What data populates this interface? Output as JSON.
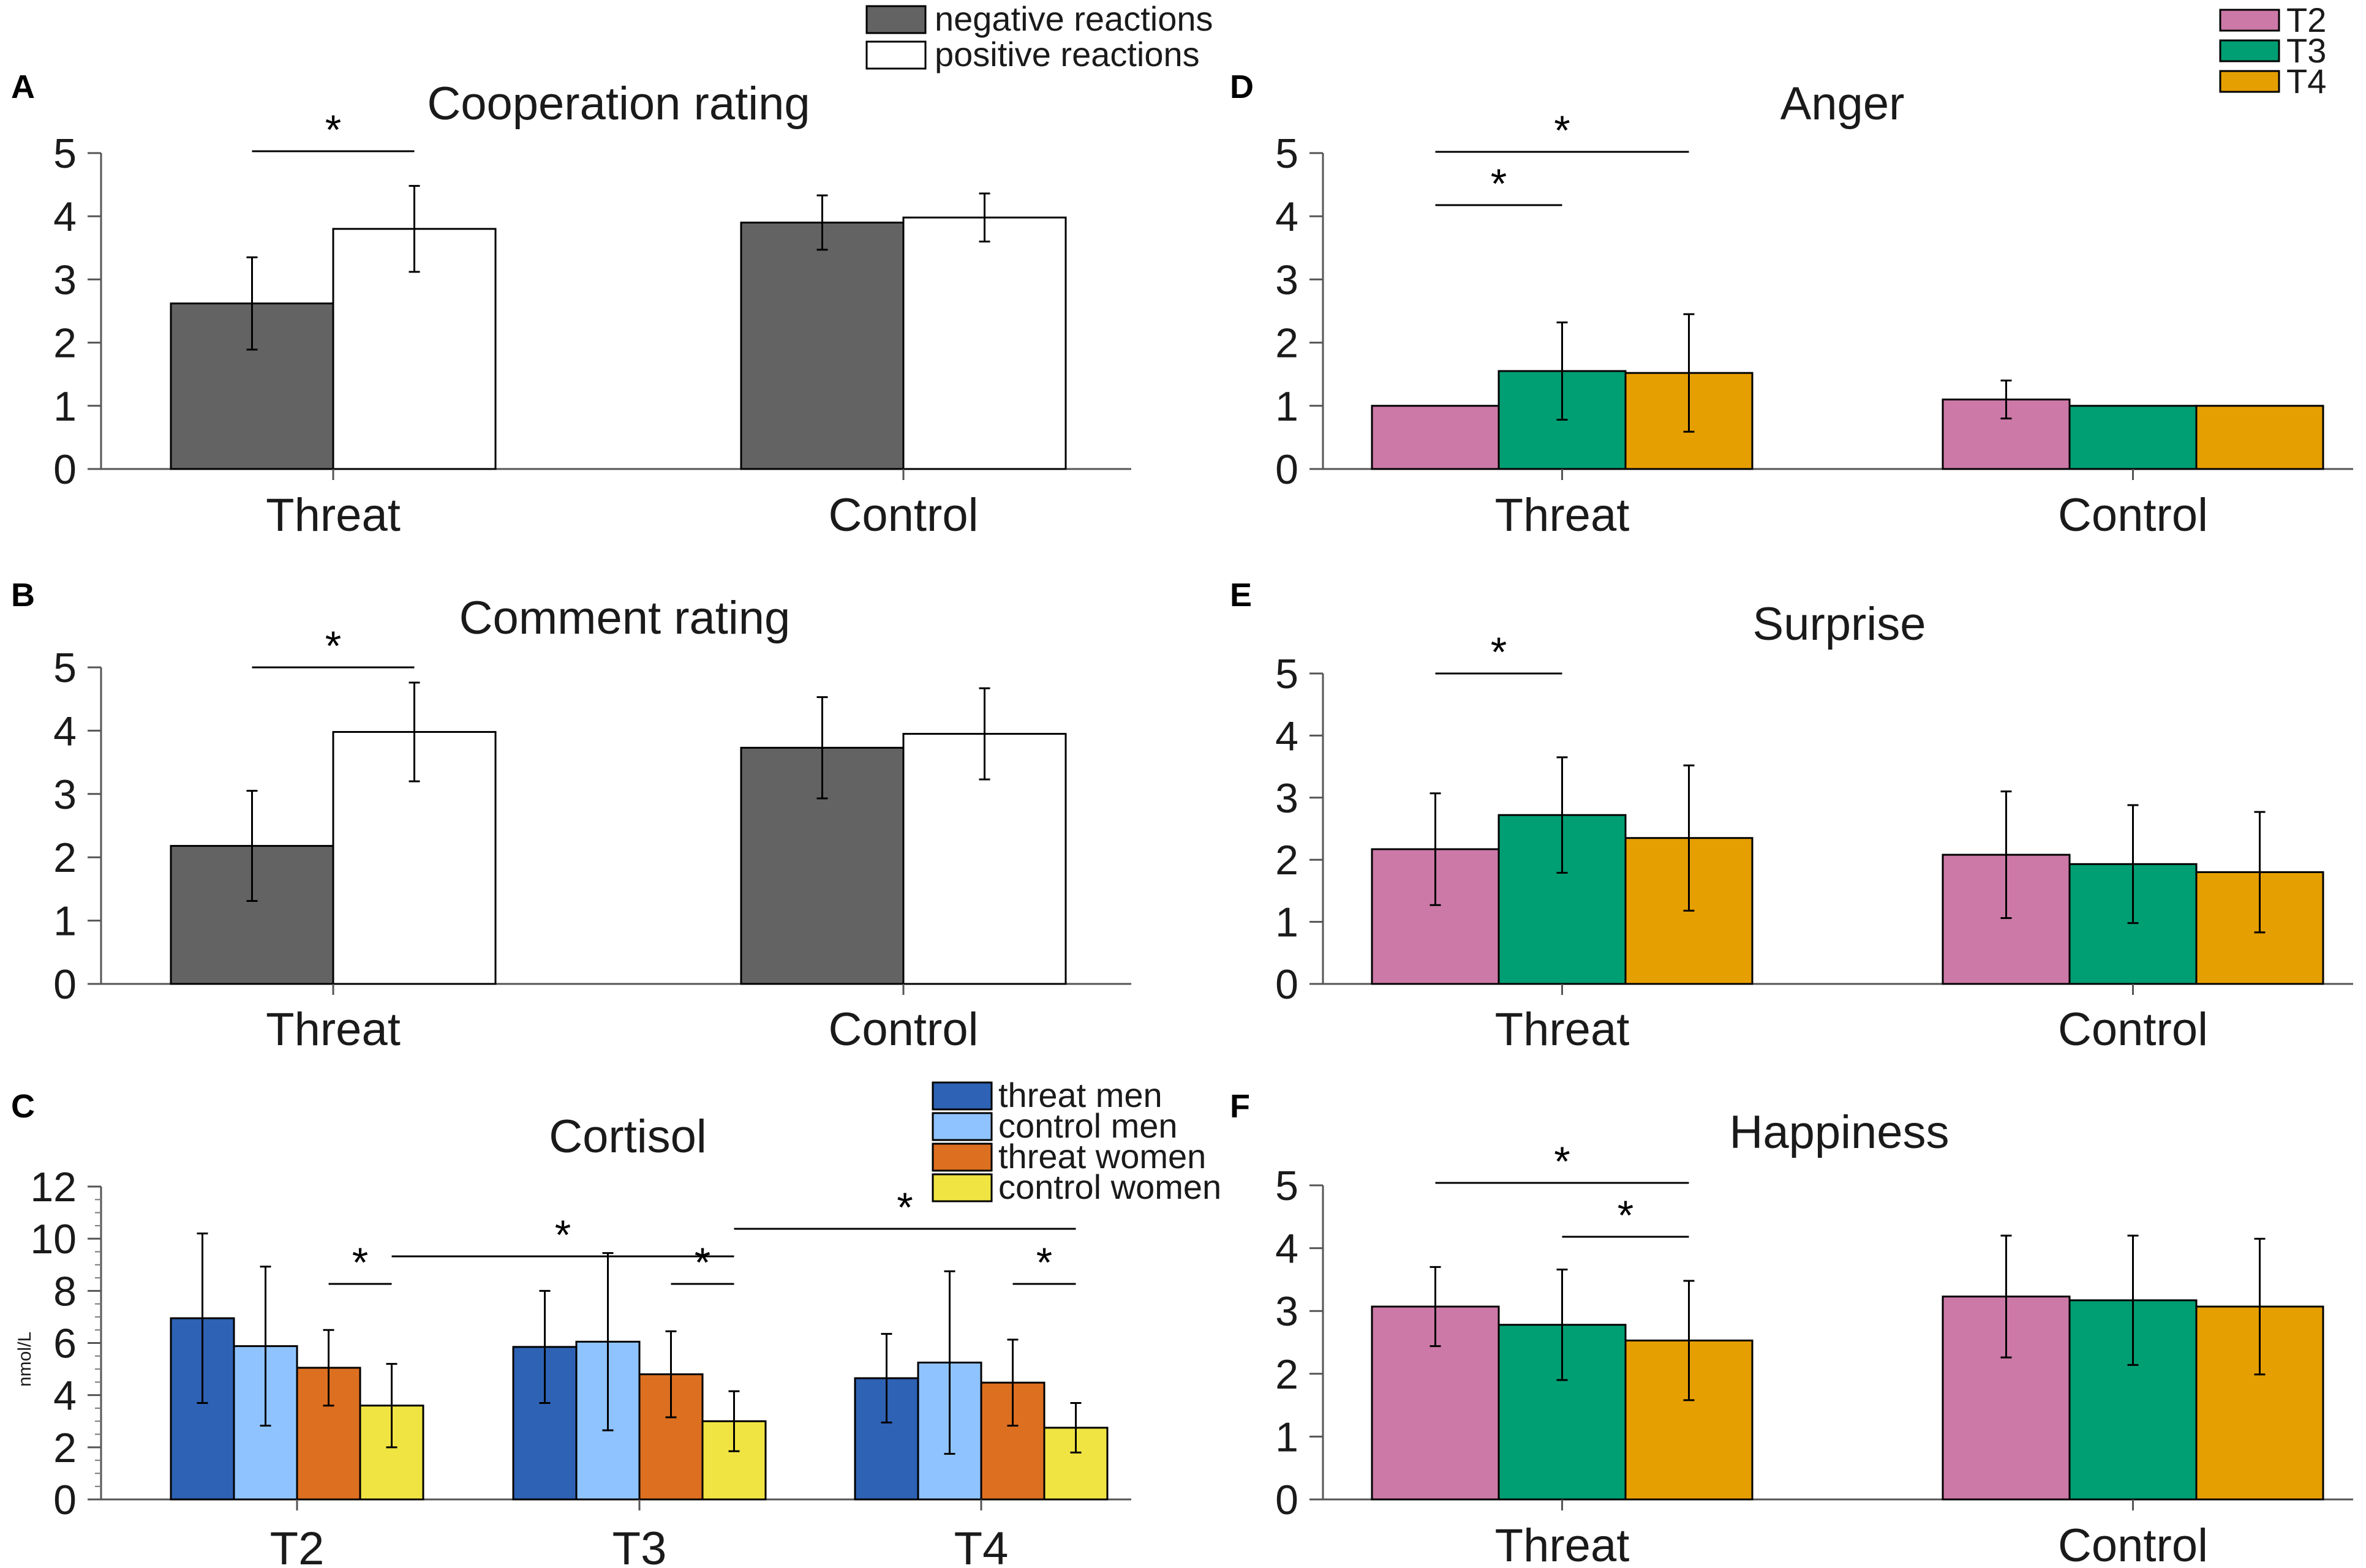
{
  "legends": {
    "reactions": [
      {
        "label": "negative reactions",
        "color": "#636363"
      },
      {
        "label": "positive reactions",
        "color": "#ffffff"
      }
    ],
    "timepoints": [
      {
        "label": "T2",
        "color": "#cc79a7"
      },
      {
        "label": "T3",
        "color": "#009e73"
      },
      {
        "label": "T4",
        "color": "#e69f00"
      }
    ],
    "cortisol_groups": [
      {
        "label": "threat men",
        "color": "#2e62b4"
      },
      {
        "label": "control men",
        "color": "#8fc3ff"
      },
      {
        "label": "threat women",
        "color": "#dd6f21"
      },
      {
        "label": "control women",
        "color": "#f0e442"
      }
    ]
  },
  "chart_data": [
    {
      "id": "A",
      "letter": "A",
      "type": "bar",
      "title": "Cooperation rating",
      "categories": [
        "Threat",
        "Control"
      ],
      "series": [
        {
          "name": "negative reactions",
          "values": [
            2.62,
            3.9
          ],
          "err": [
            0.73,
            0.43
          ],
          "color": "#636363"
        },
        {
          "name": "positive reactions",
          "values": [
            3.8,
            3.98
          ],
          "err": [
            0.68,
            0.38
          ],
          "color": "#ffffff"
        }
      ],
      "ylim": [
        0,
        5
      ],
      "yticks": [
        "0",
        "1",
        "2",
        "3",
        "4",
        "5"
      ],
      "significance": [
        {
          "group": 0,
          "from": 0,
          "to": 1,
          "level": 0,
          "label": "*"
        }
      ]
    },
    {
      "id": "B",
      "letter": "B",
      "type": "bar",
      "title": "Comment rating",
      "categories": [
        "Threat",
        "Control"
      ],
      "series": [
        {
          "name": "negative reactions",
          "values": [
            2.18,
            3.73
          ],
          "err": [
            0.87,
            0.8
          ],
          "color": "#636363"
        },
        {
          "name": "positive reactions",
          "values": [
            3.98,
            3.95
          ],
          "err": [
            0.78,
            0.72
          ],
          "color": "#ffffff"
        }
      ],
      "ylim": [
        0,
        5
      ],
      "yticks": [
        "0",
        "1",
        "2",
        "3",
        "4",
        "5"
      ],
      "significance": [
        {
          "group": 0,
          "from": 0,
          "to": 1,
          "level": 0,
          "label": "*"
        }
      ]
    },
    {
      "id": "C",
      "letter": "C",
      "type": "bar",
      "title": "Cortisol",
      "ylabel": "nmol/L",
      "categories": [
        "T2",
        "T3",
        "T4"
      ],
      "series": [
        {
          "name": "threat men",
          "values": [
            6.95,
            5.85,
            4.65
          ],
          "err": [
            3.25,
            2.15,
            1.7
          ],
          "color": "#2e62b4"
        },
        {
          "name": "control men",
          "values": [
            5.88,
            6.05,
            5.25
          ],
          "err": [
            3.05,
            3.4,
            3.5
          ],
          "color": "#8fc3ff"
        },
        {
          "name": "threat women",
          "values": [
            5.05,
            4.8,
            4.48
          ],
          "err": [
            1.45,
            1.65,
            1.65
          ],
          "color": "#dd6f21"
        },
        {
          "name": "control women",
          "values": [
            3.6,
            3.0,
            2.75
          ],
          "err": [
            1.6,
            1.15,
            0.95
          ],
          "color": "#f0e442"
        }
      ],
      "ylim": [
        0,
        12
      ],
      "yticks": [
        "0",
        "2",
        "4",
        "6",
        "8",
        "10",
        "12"
      ],
      "significance": [
        {
          "group": 0,
          "from": 2,
          "to": 3,
          "level": 0,
          "label": "*"
        },
        {
          "group": 1,
          "from": 2,
          "to": 3,
          "level": 0,
          "label": "*"
        },
        {
          "group": 2,
          "from": 2,
          "to": 3,
          "level": 0,
          "label": "*"
        },
        {
          "fromGroup": 0,
          "fromBar": 3,
          "toGroup": 1,
          "toBar": 3,
          "level": 1,
          "label": "*"
        },
        {
          "fromGroup": 1,
          "fromBar": 3,
          "toGroup": 2,
          "toBar": 3,
          "level": 2,
          "label": "*"
        }
      ]
    },
    {
      "id": "D",
      "letter": "D",
      "type": "bar",
      "title": "Anger",
      "categories": [
        "Threat",
        "Control"
      ],
      "series": [
        {
          "name": "T2",
          "values": [
            1.0,
            1.1
          ],
          "err": [
            0,
            0.3
          ],
          "color": "#cc79a7"
        },
        {
          "name": "T3",
          "values": [
            1.55,
            1.0
          ],
          "err": [
            0.77,
            0
          ],
          "color": "#009e73"
        },
        {
          "name": "T4",
          "values": [
            1.52,
            1.0
          ],
          "err": [
            0.93,
            0
          ],
          "color": "#e69f00"
        }
      ],
      "ylim": [
        0,
        5
      ],
      "yticks": [
        "0",
        "1",
        "2",
        "3",
        "4",
        "5"
      ],
      "significance": [
        {
          "group": 0,
          "from": 0,
          "to": 1,
          "level": 0,
          "label": "*"
        },
        {
          "group": 0,
          "from": 0,
          "to": 2,
          "level": 1,
          "label": "*"
        }
      ]
    },
    {
      "id": "E",
      "letter": "E",
      "type": "bar",
      "title": "Surprise",
      "categories": [
        "Threat",
        "Control"
      ],
      "series": [
        {
          "name": "T2",
          "values": [
            2.17,
            2.08
          ],
          "err": [
            0.9,
            1.02
          ],
          "color": "#cc79a7"
        },
        {
          "name": "T3",
          "values": [
            2.72,
            1.93
          ],
          "err": [
            0.93,
            0.95
          ],
          "color": "#009e73"
        },
        {
          "name": "T4",
          "values": [
            2.35,
            1.8
          ],
          "err": [
            1.17,
            0.97
          ],
          "color": "#e69f00"
        }
      ],
      "ylim": [
        0,
        5
      ],
      "yticks": [
        "0",
        "1",
        "2",
        "3",
        "4",
        "5"
      ],
      "significance": [
        {
          "group": 0,
          "from": 0,
          "to": 1,
          "level": 0,
          "label": "*"
        }
      ]
    },
    {
      "id": "F",
      "letter": "F",
      "type": "bar",
      "title": "Happiness",
      "categories": [
        "Threat",
        "Control"
      ],
      "series": [
        {
          "name": "T2",
          "values": [
            3.07,
            3.23
          ],
          "err": [
            0.63,
            0.97
          ],
          "color": "#cc79a7"
        },
        {
          "name": "T3",
          "values": [
            2.78,
            3.17
          ],
          "err": [
            0.88,
            1.03
          ],
          "color": "#009e73"
        },
        {
          "name": "T4",
          "values": [
            2.53,
            3.07
          ],
          "err": [
            0.95,
            1.08
          ],
          "color": "#e69f00"
        }
      ],
      "ylim": [
        0,
        5
      ],
      "yticks": [
        "0",
        "1",
        "2",
        "3",
        "4",
        "5"
      ],
      "significance": [
        {
          "group": 0,
          "from": 1,
          "to": 2,
          "level": 0,
          "label": "*"
        },
        {
          "group": 0,
          "from": 0,
          "to": 2,
          "level": 1,
          "label": "*"
        }
      ]
    }
  ]
}
